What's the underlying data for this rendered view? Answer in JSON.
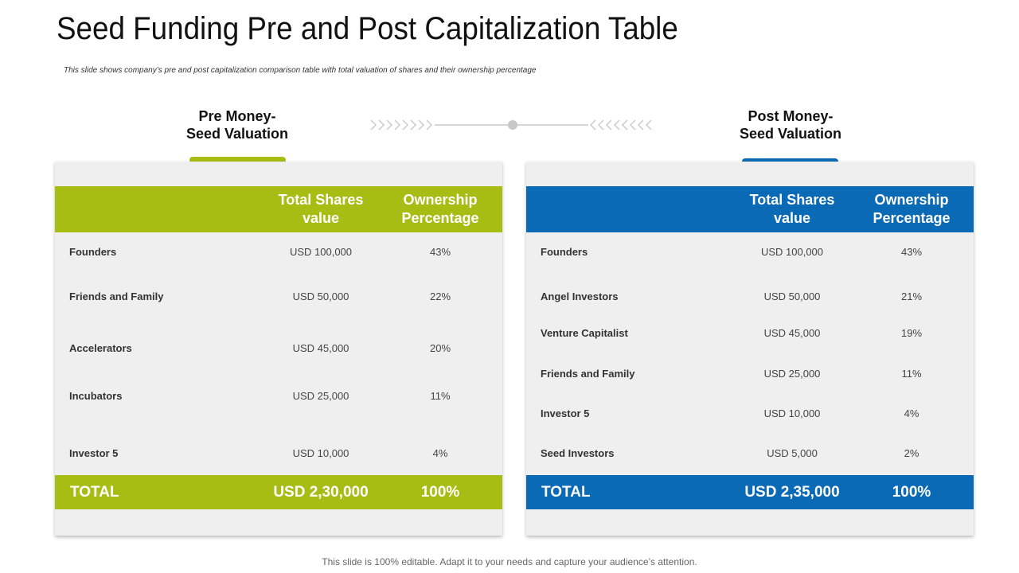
{
  "title": "Seed Funding Pre and Post Capitalization Table",
  "subtitle": "This slide shows company’s pre and post capitalization comparison table with total valuation of shares and their ownership percentage",
  "colors": {
    "pre_accent": "#a7bd13",
    "post_accent": "#0a6ab5"
  },
  "pre": {
    "heading_line1": "Pre Money-",
    "heading_line2": "Seed Valuation",
    "col1_line1": "Total Shares",
    "col1_line2": "value",
    "col2_line1": "Ownership",
    "col2_line2": "Percentage",
    "rows": [
      {
        "name": "Founders",
        "value": "USD 100,000",
        "pct": "43%"
      },
      {
        "name": "Friends and Family",
        "value": "USD 50,000",
        "pct": "22%"
      },
      {
        "name": "Accelerators",
        "value": "USD 45,000",
        "pct": "20%"
      },
      {
        "name": "Incubators",
        "value": "USD 25,000",
        "pct": "11%"
      },
      {
        "name": "Investor 5",
        "value": "USD 10,000",
        "pct": "4%"
      }
    ],
    "total_label": "TOTAL",
    "total_value": "USD 2,30,000",
    "total_pct": "100%"
  },
  "post": {
    "heading_line1": "Post Money-",
    "heading_line2": "Seed Valuation",
    "col1_line1": "Total Shares",
    "col1_line2": "value",
    "col2_line1": "Ownership",
    "col2_line2": "Percentage",
    "rows": [
      {
        "name": "Founders",
        "value": "USD 100,000",
        "pct": "43%"
      },
      {
        "name": "Angel Investors",
        "value": "USD 50,000",
        "pct": "21%"
      },
      {
        "name": "Venture Capitalist",
        "value": "USD 45,000",
        "pct": "19%"
      },
      {
        "name": "Friends and Family",
        "value": "USD 25,000",
        "pct": "11%"
      },
      {
        "name": "Investor 5",
        "value": "USD 10,000",
        "pct": "4%"
      },
      {
        "name": "Seed Investors",
        "value": "USD 5,000",
        "pct": "2%"
      }
    ],
    "total_label": "TOTAL",
    "total_value": "USD 2,35,000",
    "total_pct": "100%"
  },
  "footer": "This slide is 100% editable. Adapt it to your needs and capture your audience’s attention."
}
